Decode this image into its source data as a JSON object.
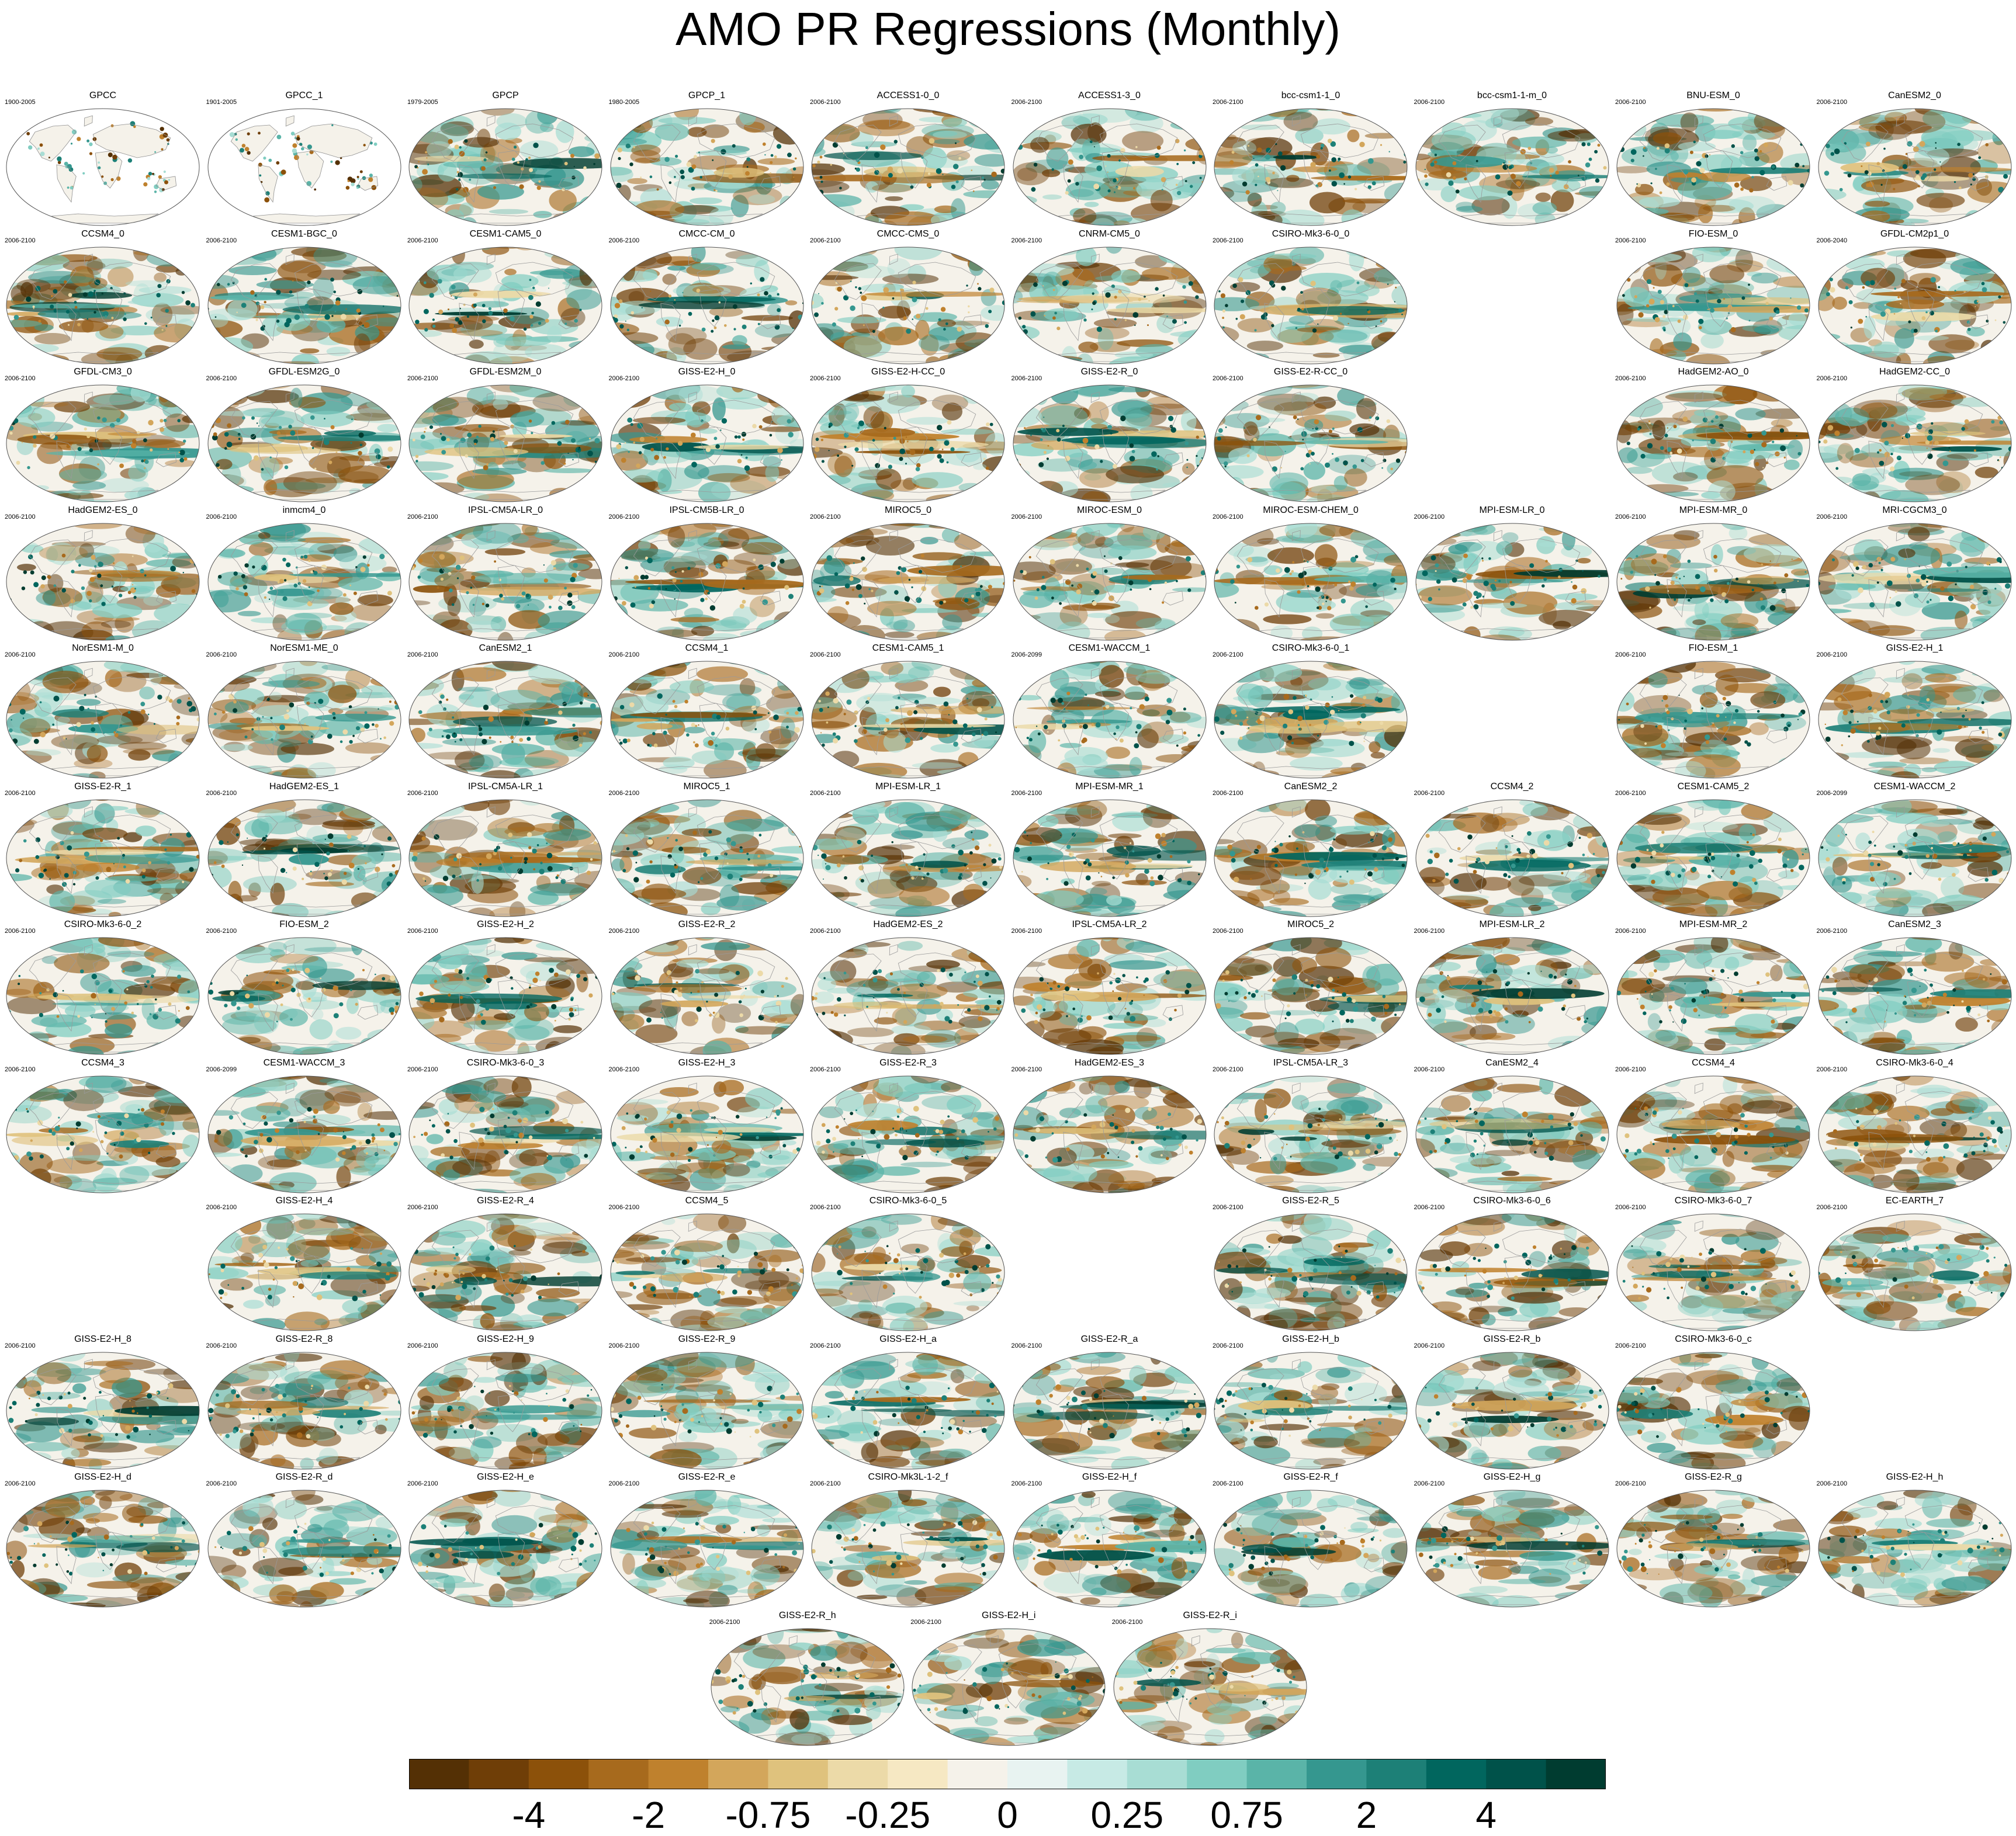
{
  "title": "AMO PR Regressions (Monthly)",
  "colorbar": {
    "colors": [
      "#543005",
      "#6f3e07",
      "#8c510a",
      "#a76a1d",
      "#bf812d",
      "#d3a65b",
      "#dfc27d",
      "#ecdaa8",
      "#f6e8c3",
      "#f5f2ea",
      "#e8f3f1",
      "#c7eae5",
      "#a8ddd4",
      "#80cdc1",
      "#5ab4a8",
      "#35978f",
      "#1d8077",
      "#01665e",
      "#00524a",
      "#003c30"
    ],
    "labels": [
      "-4",
      "-2",
      "-0.75",
      "-0.25",
      "0",
      "0.25",
      "0.75",
      "2",
      "4"
    ],
    "label_boundaries": [
      2,
      4,
      6,
      8,
      10,
      12,
      14,
      16,
      18
    ]
  },
  "panels": [
    {
      "title": "GPCC",
      "period": "1900-2005",
      "col": 0,
      "row": 0,
      "land_only": true
    },
    {
      "title": "GPCC_1",
      "period": "1901-2005",
      "col": 1,
      "row": 0,
      "land_only": true
    },
    {
      "title": "GPCP",
      "period": "1979-2005",
      "col": 2,
      "row": 0
    },
    {
      "title": "GPCP_1",
      "period": "1980-2005",
      "col": 3,
      "row": 0
    },
    {
      "title": "ACCESS1-0_0",
      "period": "2006-2100",
      "col": 4,
      "row": 0
    },
    {
      "title": "ACCESS1-3_0",
      "period": "2006-2100",
      "col": 5,
      "row": 0
    },
    {
      "title": "bcc-csm1-1_0",
      "period": "2006-2100",
      "col": 6,
      "row": 0
    },
    {
      "title": "bcc-csm1-1-m_0",
      "period": "2006-2100",
      "col": 7,
      "row": 0
    },
    {
      "title": "BNU-ESM_0",
      "period": "2006-2100",
      "col": 8,
      "row": 0
    },
    {
      "title": "CanESM2_0",
      "period": "2006-2100",
      "col": 9,
      "row": 0
    },
    {
      "title": "CCSM4_0",
      "period": "2006-2100",
      "col": 0,
      "row": 1
    },
    {
      "title": "CESM1-BGC_0",
      "period": "2006-2100",
      "col": 1,
      "row": 1
    },
    {
      "title": "CESM1-CAM5_0",
      "period": "2006-2100",
      "col": 2,
      "row": 1
    },
    {
      "title": "CMCC-CM_0",
      "period": "2006-2100",
      "col": 3,
      "row": 1
    },
    {
      "title": "CMCC-CMS_0",
      "period": "2006-2100",
      "col": 4,
      "row": 1
    },
    {
      "title": "CNRM-CM5_0",
      "period": "2006-2100",
      "col": 5,
      "row": 1
    },
    {
      "title": "CSIRO-Mk3-6-0_0",
      "period": "2006-2100",
      "col": 6,
      "row": 1
    },
    {
      "title": "FIO-ESM_0",
      "period": "2006-2100",
      "col": 8,
      "row": 1
    },
    {
      "title": "GFDL-CM2p1_0",
      "period": "2006-2040",
      "col": 9,
      "row": 1
    },
    {
      "title": "GFDL-CM3_0",
      "period": "2006-2100",
      "col": 0,
      "row": 2
    },
    {
      "title": "GFDL-ESM2G_0",
      "period": "2006-2100",
      "col": 1,
      "row": 2
    },
    {
      "title": "GFDL-ESM2M_0",
      "period": "2006-2100",
      "col": 2,
      "row": 2
    },
    {
      "title": "GISS-E2-H_0",
      "period": "2006-2100",
      "col": 3,
      "row": 2
    },
    {
      "title": "GISS-E2-H-CC_0",
      "period": "2006-2100",
      "col": 4,
      "row": 2
    },
    {
      "title": "GISS-E2-R_0",
      "period": "2006-2100",
      "col": 5,
      "row": 2
    },
    {
      "title": "GISS-E2-R-CC_0",
      "period": "2006-2100",
      "col": 6,
      "row": 2
    },
    {
      "title": "HadGEM2-AO_0",
      "period": "2006-2100",
      "col": 8,
      "row": 2
    },
    {
      "title": "HadGEM2-CC_0",
      "period": "2006-2100",
      "col": 9,
      "row": 2
    },
    {
      "title": "HadGEM2-ES_0",
      "period": "2006-2100",
      "col": 0,
      "row": 3
    },
    {
      "title": "inmcm4_0",
      "period": "2006-2100",
      "col": 1,
      "row": 3
    },
    {
      "title": "IPSL-CM5A-LR_0",
      "period": "2006-2100",
      "col": 2,
      "row": 3
    },
    {
      "title": "IPSL-CM5B-LR_0",
      "period": "2006-2100",
      "col": 3,
      "row": 3
    },
    {
      "title": "MIROC5_0",
      "period": "2006-2100",
      "col": 4,
      "row": 3
    },
    {
      "title": "MIROC-ESM_0",
      "period": "2006-2100",
      "col": 5,
      "row": 3
    },
    {
      "title": "MIROC-ESM-CHEM_0",
      "period": "2006-2100",
      "col": 6,
      "row": 3
    },
    {
      "title": "MPI-ESM-LR_0",
      "period": "2006-2100",
      "col": 7,
      "row": 3
    },
    {
      "title": "MPI-ESM-MR_0",
      "period": "2006-2100",
      "col": 8,
      "row": 3
    },
    {
      "title": "MRI-CGCM3_0",
      "period": "2006-2100",
      "col": 9,
      "row": 3
    },
    {
      "title": "NorESM1-M_0",
      "period": "2006-2100",
      "col": 0,
      "row": 4
    },
    {
      "title": "NorESM1-ME_0",
      "period": "2006-2100",
      "col": 1,
      "row": 4
    },
    {
      "title": "CanESM2_1",
      "period": "2006-2100",
      "col": 2,
      "row": 4
    },
    {
      "title": "CCSM4_1",
      "period": "2006-2100",
      "col": 3,
      "row": 4
    },
    {
      "title": "CESM1-CAM5_1",
      "period": "2006-2100",
      "col": 4,
      "row": 4
    },
    {
      "title": "CESM1-WACCM_1",
      "period": "2006-2099",
      "col": 5,
      "row": 4
    },
    {
      "title": "CSIRO-Mk3-6-0_1",
      "period": "2006-2100",
      "col": 6,
      "row": 4
    },
    {
      "title": "FIO-ESM_1",
      "period": "2006-2100",
      "col": 8,
      "row": 4
    },
    {
      "title": "GISS-E2-H_1",
      "period": "2006-2100",
      "col": 9,
      "row": 4
    },
    {
      "title": "GISS-E2-R_1",
      "period": "2006-2100",
      "col": 0,
      "row": 5
    },
    {
      "title": "HadGEM2-ES_1",
      "period": "2006-2100",
      "col": 1,
      "row": 5
    },
    {
      "title": "IPSL-CM5A-LR_1",
      "period": "2006-2100",
      "col": 2,
      "row": 5
    },
    {
      "title": "MIROC5_1",
      "period": "2006-2100",
      "col": 3,
      "row": 5
    },
    {
      "title": "MPI-ESM-LR_1",
      "period": "2006-2100",
      "col": 4,
      "row": 5
    },
    {
      "title": "MPI-ESM-MR_1",
      "period": "2006-2100",
      "col": 5,
      "row": 5
    },
    {
      "title": "CanESM2_2",
      "period": "2006-2100",
      "col": 6,
      "row": 5
    },
    {
      "title": "CCSM4_2",
      "period": "2006-2100",
      "col": 7,
      "row": 5
    },
    {
      "title": "CESM1-CAM5_2",
      "period": "2006-2100",
      "col": 8,
      "row": 5
    },
    {
      "title": "CESM1-WACCM_2",
      "period": "2006-2099",
      "col": 9,
      "row": 5
    },
    {
      "title": "CSIRO-Mk3-6-0_2",
      "period": "2006-2100",
      "col": 0,
      "row": 6
    },
    {
      "title": "FIO-ESM_2",
      "period": "2006-2100",
      "col": 1,
      "row": 6
    },
    {
      "title": "GISS-E2-H_2",
      "period": "2006-2100",
      "col": 2,
      "row": 6
    },
    {
      "title": "GISS-E2-R_2",
      "period": "2006-2100",
      "col": 3,
      "row": 6
    },
    {
      "title": "HadGEM2-ES_2",
      "period": "2006-2100",
      "col": 4,
      "row": 6
    },
    {
      "title": "IPSL-CM5A-LR_2",
      "period": "2006-2100",
      "col": 5,
      "row": 6
    },
    {
      "title": "MIROC5_2",
      "period": "2006-2100",
      "col": 6,
      "row": 6
    },
    {
      "title": "MPI-ESM-LR_2",
      "period": "2006-2100",
      "col": 7,
      "row": 6
    },
    {
      "title": "MPI-ESM-MR_2",
      "period": "2006-2100",
      "col": 8,
      "row": 6
    },
    {
      "title": "CanESM2_3",
      "period": "2006-2100",
      "col": 9,
      "row": 6
    },
    {
      "title": "CCSM4_3",
      "period": "2006-2100",
      "col": 0,
      "row": 7
    },
    {
      "title": "CESM1-WACCM_3",
      "period": "2006-2099",
      "col": 1,
      "row": 7
    },
    {
      "title": "CSIRO-Mk3-6-0_3",
      "period": "2006-2100",
      "col": 2,
      "row": 7
    },
    {
      "title": "GISS-E2-H_3",
      "period": "2006-2100",
      "col": 3,
      "row": 7
    },
    {
      "title": "GISS-E2-R_3",
      "period": "2006-2100",
      "col": 4,
      "row": 7
    },
    {
      "title": "HadGEM2-ES_3",
      "period": "2006-2100",
      "col": 5,
      "row": 7
    },
    {
      "title": "IPSL-CM5A-LR_3",
      "period": "2006-2100",
      "col": 6,
      "row": 7
    },
    {
      "title": "CanESM2_4",
      "period": "2006-2100",
      "col": 7,
      "row": 7
    },
    {
      "title": "CCSM4_4",
      "period": "2006-2100",
      "col": 8,
      "row": 7
    },
    {
      "title": "CSIRO-Mk3-6-0_4",
      "period": "2006-2100",
      "col": 9,
      "row": 7
    },
    {
      "title": "GISS-E2-H_4",
      "period": "2006-2100",
      "col": 1,
      "row": 8
    },
    {
      "title": "GISS-E2-R_4",
      "period": "2006-2100",
      "col": 2,
      "row": 8
    },
    {
      "title": "CCSM4_5",
      "period": "2006-2100",
      "col": 3,
      "row": 8
    },
    {
      "title": "CSIRO-Mk3-6-0_5",
      "period": "2006-2100",
      "col": 4,
      "row": 8
    },
    {
      "title": "GISS-E2-R_5",
      "period": "2006-2100",
      "col": 6,
      "row": 8
    },
    {
      "title": "CSIRO-Mk3-6-0_6",
      "period": "2006-2100",
      "col": 7,
      "row": 8
    },
    {
      "title": "CSIRO-Mk3-6-0_7",
      "period": "2006-2100",
      "col": 8,
      "row": 8
    },
    {
      "title": "EC-EARTH_7",
      "period": "2006-2100",
      "col": 9,
      "row": 8
    },
    {
      "title": "GISS-E2-H_8",
      "period": "2006-2100",
      "col": 0,
      "row": 9
    },
    {
      "title": "GISS-E2-R_8",
      "period": "2006-2100",
      "col": 1,
      "row": 9
    },
    {
      "title": "GISS-E2-H_9",
      "period": "2006-2100",
      "col": 2,
      "row": 9
    },
    {
      "title": "GISS-E2-R_9",
      "period": "2006-2100",
      "col": 3,
      "row": 9
    },
    {
      "title": "GISS-E2-H_a",
      "period": "2006-2100",
      "col": 4,
      "row": 9
    },
    {
      "title": "GISS-E2-R_a",
      "period": "2006-2100",
      "col": 5,
      "row": 9
    },
    {
      "title": "GISS-E2-H_b",
      "period": "2006-2100",
      "col": 6,
      "row": 9
    },
    {
      "title": "GISS-E2-R_b",
      "period": "2006-2100",
      "col": 7,
      "row": 9
    },
    {
      "title": "CSIRO-Mk3-6-0_c",
      "period": "2006-2100",
      "col": 8,
      "row": 9
    },
    {
      "title": "GISS-E2-H_d",
      "period": "2006-2100",
      "col": 0,
      "row": 10
    },
    {
      "title": "GISS-E2-R_d",
      "period": "2006-2100",
      "col": 1,
      "row": 10
    },
    {
      "title": "GISS-E2-H_e",
      "period": "2006-2100",
      "col": 2,
      "row": 10
    },
    {
      "title": "GISS-E2-R_e",
      "period": "2006-2100",
      "col": 3,
      "row": 10
    },
    {
      "title": "CSIRO-Mk3L-1-2_f",
      "period": "2006-2100",
      "col": 4,
      "row": 10
    },
    {
      "title": "GISS-E2-H_f",
      "period": "2006-2100",
      "col": 5,
      "row": 10
    },
    {
      "title": "GISS-E2-R_f",
      "period": "2006-2100",
      "col": 6,
      "row": 10
    },
    {
      "title": "GISS-E2-H_g",
      "period": "2006-2100",
      "col": 7,
      "row": 10
    },
    {
      "title": "GISS-E2-R_g",
      "period": "2006-2100",
      "col": 8,
      "row": 10
    },
    {
      "title": "GISS-E2-H_h",
      "period": "2006-2100",
      "col": 9,
      "row": 10
    },
    {
      "title": "GISS-E2-R_h",
      "period": "2006-2100",
      "col": 3.5,
      "row": 11
    },
    {
      "title": "GISS-E2-H_i",
      "period": "2006-2100",
      "col": 4.5,
      "row": 11
    },
    {
      "title": "GISS-E2-R_i",
      "period": "2006-2100",
      "col": 5.5,
      "row": 11
    }
  ]
}
